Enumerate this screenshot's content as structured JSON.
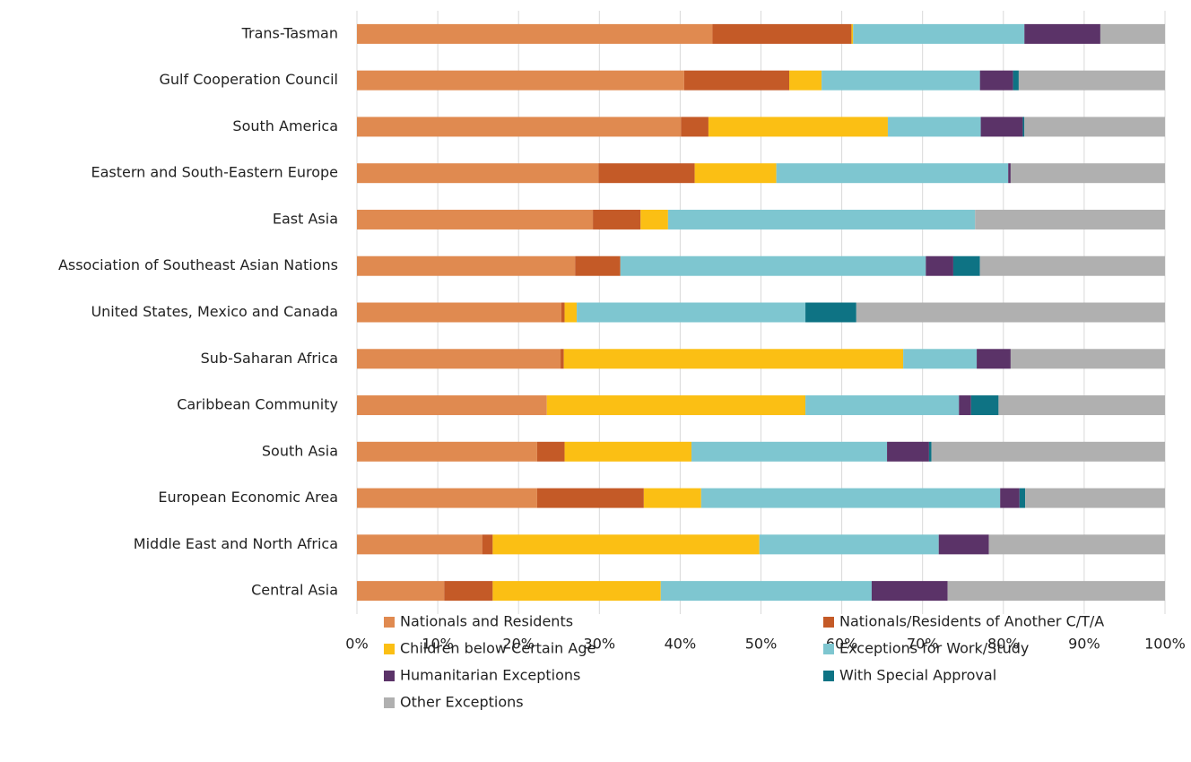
{
  "chart_data": {
    "type": "stacked-barh",
    "categories": [
      "Trans-Tasman",
      "Gulf Cooperation Council",
      "South America",
      "Eastern and South-Eastern Europe",
      "East Asia",
      "Association of Southeast Asian Nations",
      "United States, Mexico and Canada",
      "Sub-Saharan Africa",
      "Caribbean Community",
      "South Asia",
      "European Economic Area",
      "Middle East and North Africa",
      "Central Asia"
    ],
    "series": [
      {
        "name": "Nationals and Residents",
        "color": "#e08a50",
        "values": [
          44.0,
          40.5,
          40.1,
          29.9,
          29.2,
          27.0,
          25.3,
          25.2,
          23.5,
          22.3,
          22.3,
          15.5,
          10.8
        ]
      },
      {
        "name": "Nationals/Residents of Another C/T/A",
        "color": "#c45a27",
        "values": [
          17.2,
          13.0,
          3.4,
          11.9,
          5.9,
          5.6,
          0.4,
          0.4,
          0,
          3.4,
          13.2,
          1.3,
          6.0
        ]
      },
      {
        "name": "Children below Certain Age",
        "color": "#fbbf14",
        "values": [
          0.2,
          4.0,
          22.2,
          10.1,
          3.4,
          0,
          1.5,
          42.0,
          32.0,
          15.7,
          7.1,
          33.0,
          20.8
        ]
      },
      {
        "name": "Exceptions for Work/Study",
        "color": "#7ec6d0",
        "values": [
          21.2,
          19.6,
          11.5,
          28.7,
          38.0,
          37.8,
          28.3,
          9.1,
          19.0,
          24.2,
          37.0,
          22.2,
          26.1
        ]
      },
      {
        "name": "Humanitarian Exceptions",
        "color": "#5b3368",
        "values": [
          9.4,
          4.1,
          5.2,
          0.3,
          0,
          3.4,
          0,
          4.2,
          1.5,
          5.2,
          2.4,
          6.2,
          9.4
        ]
      },
      {
        "name": "With Special Approval",
        "color": "#0e7384",
        "values": [
          0,
          0.7,
          0.2,
          0,
          0,
          3.3,
          6.3,
          0,
          3.4,
          0.3,
          0.7,
          0,
          0
        ]
      },
      {
        "name": "Other Exceptions",
        "color": "#b0b0b0",
        "values": [
          8.0,
          18.1,
          17.4,
          19.1,
          23.5,
          22.9,
          38.2,
          19.1,
          20.6,
          28.9,
          17.3,
          21.8,
          26.9
        ]
      }
    ],
    "xlim": [
      0,
      100
    ],
    "xticks": [
      {
        "value": 0,
        "label": "0%"
      },
      {
        "value": 10,
        "label": "10%"
      },
      {
        "value": 20,
        "label": "20%"
      },
      {
        "value": 30,
        "label": "30%"
      },
      {
        "value": 40,
        "label": "40%"
      },
      {
        "value": 50,
        "label": "50%"
      },
      {
        "value": 60,
        "label": "60%"
      },
      {
        "value": 70,
        "label": "70%"
      },
      {
        "value": 80,
        "label": "80%"
      },
      {
        "value": 90,
        "label": "90%"
      },
      {
        "value": 100,
        "label": "100%"
      }
    ],
    "grid": true
  }
}
